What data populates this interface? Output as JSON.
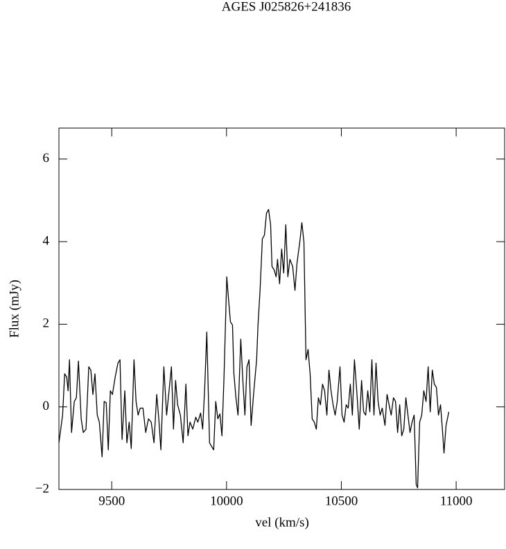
{
  "chart_data": {
    "type": "line",
    "title": "AGES J025826+241836",
    "x_label": "vel (km/s)",
    "y_label": "Flux (mJy)",
    "x": [
      9270,
      9286,
      9295,
      9304,
      9310,
      9316,
      9325,
      9337,
      9346,
      9355,
      9367,
      9376,
      9388,
      9400,
      9409,
      9418,
      9427,
      9437,
      9446,
      9458,
      9467,
      9476,
      9485,
      9494,
      9503,
      9515,
      9527,
      9536,
      9545,
      9557,
      9566,
      9576,
      9585,
      9597,
      9606,
      9615,
      9624,
      9636,
      9648,
      9660,
      9672,
      9684,
      9696,
      9705,
      9714,
      9727,
      9739,
      9748,
      9760,
      9769,
      9778,
      9787,
      9799,
      9811,
      9823,
      9832,
      9841,
      9853,
      9866,
      9875,
      9887,
      9896,
      9905,
      9914,
      9926,
      9935,
      9944,
      9953,
      9962,
      9971,
      9980,
      9989,
      10001,
      10008,
      10017,
      10026,
      10032,
      10041,
      10050,
      10062,
      10071,
      10080,
      10089,
      10098,
      10107,
      10119,
      10131,
      10137,
      10146,
      10156,
      10165,
      10174,
      10183,
      10192,
      10198,
      10207,
      10216,
      10222,
      10231,
      10240,
      10249,
      10258,
      10267,
      10276,
      10288,
      10298,
      10307,
      10319,
      10328,
      10337,
      10346,
      10355,
      10364,
      10373,
      10382,
      10391,
      10400,
      10409,
      10418,
      10427,
      10437,
      10446,
      10455,
      10464,
      10473,
      10482,
      10494,
      10503,
      10512,
      10521,
      10530,
      10539,
      10548,
      10557,
      10566,
      10578,
      10588,
      10597,
      10606,
      10615,
      10624,
      10633,
      10642,
      10651,
      10660,
      10669,
      10678,
      10690,
      10699,
      10708,
      10717,
      10727,
      10736,
      10745,
      10754,
      10763,
      10772,
      10781,
      10790,
      10799,
      10808,
      10817,
      10826,
      10832,
      10841,
      10850,
      10859,
      10869,
      10878,
      10887,
      10896,
      10905,
      10914,
      10923,
      10932,
      10941,
      10947,
      10956,
      10968
    ],
    "series": [
      {
        "color": "#000000",
        "values": [
          -0.87,
          -0.2,
          0.8,
          0.72,
          0.39,
          1.14,
          -0.62,
          0.13,
          0.22,
          1.11,
          -0.29,
          -0.62,
          -0.54,
          0.97,
          0.89,
          0.3,
          0.8,
          -0.2,
          -0.37,
          -1.21,
          0.13,
          0.1,
          -1.04,
          0.39,
          0.3,
          0.72,
          1.06,
          1.14,
          -0.79,
          0.39,
          -0.87,
          -0.37,
          -1.01,
          1.14,
          0.13,
          -0.2,
          -0.03,
          -0.03,
          -0.62,
          -0.29,
          -0.37,
          -0.87,
          0.3,
          -0.29,
          -1.04,
          0.97,
          -0.2,
          0.3,
          0.97,
          -0.54,
          0.64,
          0.05,
          -0.2,
          -0.87,
          0.55,
          -0.7,
          -0.37,
          -0.54,
          -0.25,
          -0.37,
          -0.15,
          -0.54,
          0.47,
          1.81,
          -0.87,
          -0.96,
          -1.04,
          0.13,
          -0.29,
          -0.17,
          -0.7,
          0.72,
          3.15,
          2.65,
          2.06,
          1.98,
          0.8,
          0.22,
          -0.2,
          1.64,
          0.64,
          -0.2,
          0.97,
          1.14,
          -0.45,
          0.39,
          1.14,
          1.98,
          2.82,
          4.07,
          4.16,
          4.69,
          4.78,
          4.41,
          3.4,
          3.32,
          3.15,
          3.57,
          2.98,
          3.82,
          3.24,
          4.41,
          3.15,
          3.57,
          3.4,
          2.82,
          3.49,
          3.99,
          4.46,
          3.99,
          1.14,
          1.39,
          0.8,
          -0.29,
          -0.37,
          -0.54,
          0.22,
          0.05,
          0.55,
          0.39,
          -0.2,
          0.89,
          0.39,
          0.05,
          -0.2,
          0.13,
          0.97,
          -0.2,
          -0.37,
          0.05,
          -0.03,
          0.55,
          -0.2,
          1.14,
          0.47,
          -0.54,
          0.64,
          -0.12,
          -0.2,
          0.39,
          -0.12,
          1.14,
          -0.2,
          1.06,
          0.13,
          -0.2,
          -0.03,
          -0.45,
          0.3,
          0.05,
          -0.2,
          0.22,
          0.13,
          -0.62,
          0.05,
          -0.7,
          -0.54,
          0.22,
          -0.2,
          -0.62,
          -0.37,
          -0.2,
          -1.88,
          -1.96,
          -0.37,
          -0.2,
          0.39,
          0.13,
          0.97,
          -0.12,
          0.89,
          0.55,
          0.47,
          -0.2,
          0.05,
          -0.62,
          -1.12,
          -0.45,
          -0.12
        ]
      }
    ],
    "xlim": [
      9270,
      11211
    ],
    "ylim": [
      -2,
      6.75
    ],
    "xticks": [
      9500,
      10000,
      10500,
      11000
    ],
    "yticks": [
      {
        "value": -2,
        "label": "−2"
      },
      0,
      2,
      4,
      6
    ]
  }
}
